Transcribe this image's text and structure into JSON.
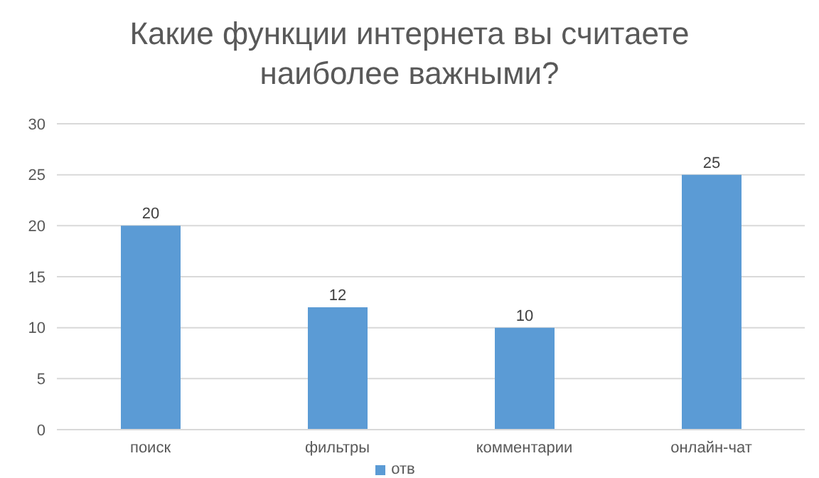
{
  "chart_data": {
    "type": "bar",
    "title": "Какие функции интернета вы считаете наиболее важными?",
    "categories": [
      "поиск",
      "фильтры",
      "комментарии",
      "онлайн-чат"
    ],
    "series": [
      {
        "name": "отв",
        "color": "#5b9bd5",
        "values": [
          20,
          12,
          10,
          25
        ]
      }
    ],
    "ylim": [
      0,
      30
    ],
    "yticks": [
      0,
      5,
      10,
      15,
      20,
      25,
      30
    ],
    "grid": "y",
    "legend": "bottom",
    "data_labels": true
  }
}
